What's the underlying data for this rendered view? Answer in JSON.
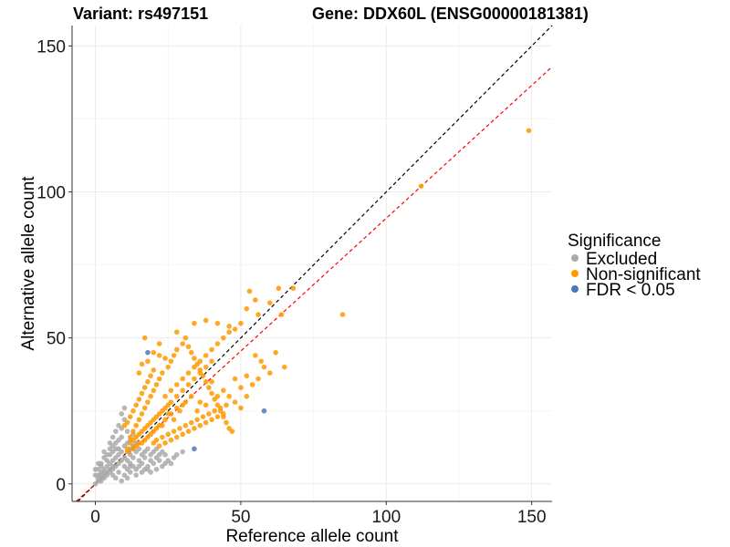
{
  "chart_data": {
    "type": "scatter",
    "title_left": "Variant: rs497151",
    "title_right": "Gene: DDX60L (ENSG00000181381)",
    "xlabel": "Reference allele count",
    "ylabel": "Alternative allele count",
    "xlim": [
      -8,
      157
    ],
    "ylim": [
      -6,
      157
    ],
    "xticks": [
      0,
      50,
      100,
      150
    ],
    "yticks": [
      0,
      50,
      100,
      150
    ],
    "grid": true,
    "legend": {
      "title": "Significance",
      "placement": "right",
      "entries": [
        {
          "label": "Excluded",
          "color": "#aaaaaa"
        },
        {
          "label": "Non-significant",
          "color": "#ff9900"
        },
        {
          "label": "FDR < 0.05",
          "color": "#4a7ab5"
        }
      ]
    },
    "reference_lines": [
      {
        "name": "y = x",
        "slope": 1.0,
        "intercept": 0,
        "color": "#000000",
        "dash": true
      },
      {
        "name": "ratio line",
        "slope": 0.91,
        "intercept": 0,
        "color": "#ff0000",
        "dash": true
      }
    ],
    "series": [
      {
        "name": "Excluded",
        "color": "#aaaaaa",
        "points": [
          [
            0,
            0
          ],
          [
            1,
            1
          ],
          [
            2,
            1
          ],
          [
            1,
            3
          ],
          [
            3,
            2
          ],
          [
            2,
            4
          ],
          [
            4,
            3
          ],
          [
            3,
            5
          ],
          [
            5,
            4
          ],
          [
            4,
            6
          ],
          [
            6,
            5
          ],
          [
            5,
            7
          ],
          [
            7,
            6
          ],
          [
            6,
            8
          ],
          [
            8,
            7
          ],
          [
            7,
            9
          ],
          [
            9,
            8
          ],
          [
            8,
            10
          ],
          [
            10,
            9
          ],
          [
            9,
            11
          ],
          [
            2,
            7
          ],
          [
            3,
            9
          ],
          [
            1,
            5
          ],
          [
            4,
            10
          ],
          [
            5,
            12
          ],
          [
            6,
            13
          ],
          [
            7,
            14
          ],
          [
            8,
            15
          ],
          [
            9,
            16
          ],
          [
            6,
            11
          ],
          [
            5,
            10
          ],
          [
            7,
            12
          ],
          [
            8,
            12
          ],
          [
            10,
            6
          ],
          [
            11,
            5
          ],
          [
            12,
            4
          ],
          [
            13,
            6
          ],
          [
            14,
            5
          ],
          [
            12,
            7
          ],
          [
            15,
            8
          ],
          [
            16,
            7
          ],
          [
            17,
            9
          ],
          [
            18,
            6
          ],
          [
            19,
            8
          ],
          [
            20,
            7
          ],
          [
            21,
            9
          ],
          [
            22,
            8
          ],
          [
            14,
            3
          ],
          [
            16,
            4
          ],
          [
            18,
            5
          ],
          [
            23,
            6
          ],
          [
            25,
            8
          ],
          [
            26,
            7
          ],
          [
            27,
            9
          ],
          [
            24,
            10
          ],
          [
            10,
            13
          ],
          [
            11,
            14
          ],
          [
            12,
            15
          ],
          [
            13,
            17
          ],
          [
            11,
            18
          ],
          [
            9,
            19
          ],
          [
            10,
            22
          ],
          [
            8,
            20
          ],
          [
            7,
            18
          ],
          [
            9,
            24
          ],
          [
            10,
            26
          ],
          [
            6,
            16
          ],
          [
            5,
            14
          ],
          [
            3,
            11
          ],
          [
            2,
            6
          ],
          [
            4,
            8
          ],
          [
            6,
            3
          ],
          [
            8,
            4
          ],
          [
            10,
            3
          ],
          [
            11,
            2
          ],
          [
            9,
            1
          ],
          [
            7,
            2
          ],
          [
            12,
            10
          ],
          [
            14,
            11
          ],
          [
            15,
            12
          ],
          [
            16,
            10
          ],
          [
            17,
            11
          ],
          [
            18,
            12
          ],
          [
            19,
            10
          ],
          [
            20,
            11
          ],
          [
            21,
            12
          ],
          [
            22,
            10
          ],
          [
            23,
            11
          ],
          [
            13,
            9
          ],
          [
            11,
            8
          ],
          [
            12,
            6
          ],
          [
            15,
            6
          ],
          [
            17,
            5
          ],
          [
            19,
            4
          ],
          [
            21,
            5
          ],
          [
            24,
            7
          ],
          [
            28,
            10
          ],
          [
            30,
            11
          ],
          [
            2,
            2
          ],
          [
            3,
            3
          ],
          [
            4,
            4
          ],
          [
            5,
            5
          ],
          [
            6,
            6
          ],
          [
            1,
            2
          ],
          [
            2,
            3
          ],
          [
            3,
            4
          ],
          [
            0,
            3
          ],
          [
            0,
            5
          ],
          [
            1,
            7
          ],
          [
            12,
            12
          ],
          [
            13,
            13
          ],
          [
            14,
            14
          ]
        ]
      },
      {
        "name": "Non-significant",
        "color": "#ff9900",
        "points": [
          [
            11,
            12
          ],
          [
            12,
            14
          ],
          [
            13,
            15
          ],
          [
            14,
            16
          ],
          [
            15,
            17
          ],
          [
            16,
            18
          ],
          [
            17,
            19
          ],
          [
            18,
            20
          ],
          [
            19,
            21
          ],
          [
            20,
            22
          ],
          [
            21,
            23
          ],
          [
            22,
            24
          ],
          [
            23,
            25
          ],
          [
            24,
            26
          ],
          [
            25,
            27
          ],
          [
            12,
            16
          ],
          [
            13,
            18
          ],
          [
            14,
            20
          ],
          [
            15,
            22
          ],
          [
            16,
            24
          ],
          [
            17,
            26
          ],
          [
            18,
            28
          ],
          [
            19,
            30
          ],
          [
            20,
            32
          ],
          [
            21,
            34
          ],
          [
            22,
            36
          ],
          [
            23,
            38
          ],
          [
            25,
            40
          ],
          [
            26,
            42
          ],
          [
            27,
            44
          ],
          [
            28,
            46
          ],
          [
            30,
            48
          ],
          [
            31,
            50
          ],
          [
            32,
            47
          ],
          [
            33,
            45
          ],
          [
            34,
            43
          ],
          [
            35,
            41
          ],
          [
            36,
            39
          ],
          [
            37,
            37
          ],
          [
            38,
            35
          ],
          [
            39,
            33
          ],
          [
            40,
            31
          ],
          [
            41,
            29
          ],
          [
            42,
            27
          ],
          [
            43,
            25
          ],
          [
            44,
            23
          ],
          [
            45,
            21
          ],
          [
            46,
            19
          ],
          [
            47,
            18
          ],
          [
            20,
            14
          ],
          [
            21,
            15
          ],
          [
            22,
            13
          ],
          [
            23,
            16
          ],
          [
            24,
            14
          ],
          [
            25,
            17
          ],
          [
            26,
            15
          ],
          [
            27,
            18
          ],
          [
            28,
            16
          ],
          [
            29,
            19
          ],
          [
            30,
            17
          ],
          [
            31,
            20
          ],
          [
            32,
            18
          ],
          [
            33,
            21
          ],
          [
            34,
            19
          ],
          [
            35,
            22
          ],
          [
            36,
            20
          ],
          [
            37,
            23
          ],
          [
            38,
            21
          ],
          [
            39,
            24
          ],
          [
            40,
            22
          ],
          [
            41,
            25
          ],
          [
            42,
            23
          ],
          [
            43,
            26
          ],
          [
            44,
            24
          ],
          [
            45,
            27
          ],
          [
            18,
            35
          ],
          [
            19,
            37
          ],
          [
            20,
            39
          ],
          [
            17,
            33
          ],
          [
            16,
            31
          ],
          [
            15,
            29
          ],
          [
            14,
            27
          ],
          [
            13,
            25
          ],
          [
            12,
            23
          ],
          [
            11,
            21
          ],
          [
            10,
            20
          ],
          [
            24,
            30
          ],
          [
            26,
            32
          ],
          [
            28,
            34
          ],
          [
            30,
            36
          ],
          [
            32,
            38
          ],
          [
            34,
            40
          ],
          [
            36,
            42
          ],
          [
            38,
            44
          ],
          [
            40,
            46
          ],
          [
            42,
            48
          ],
          [
            44,
            50
          ],
          [
            46,
            52
          ],
          [
            48,
            53
          ],
          [
            50,
            55
          ],
          [
            26,
            28
          ],
          [
            28,
            30
          ],
          [
            30,
            32
          ],
          [
            32,
            34
          ],
          [
            34,
            36
          ],
          [
            36,
            38
          ],
          [
            38,
            40
          ],
          [
            40,
            42
          ],
          [
            20,
            45
          ],
          [
            22,
            44
          ],
          [
            24,
            43
          ],
          [
            18,
            42
          ],
          [
            16,
            41
          ],
          [
            15,
            38
          ],
          [
            17,
            50
          ],
          [
            22,
            48
          ],
          [
            28,
            52
          ],
          [
            34,
            55
          ],
          [
            38,
            56
          ],
          [
            42,
            55
          ],
          [
            46,
            54
          ],
          [
            52,
            60
          ],
          [
            55,
            63
          ],
          [
            60,
            62
          ],
          [
            53,
            66
          ],
          [
            56,
            58
          ],
          [
            63,
            67
          ],
          [
            68,
            67
          ],
          [
            64,
            58
          ],
          [
            62,
            45
          ],
          [
            55,
            44
          ],
          [
            57,
            42
          ],
          [
            60,
            38
          ],
          [
            65,
            40
          ],
          [
            52,
            37
          ],
          [
            48,
            36
          ],
          [
            50,
            33
          ],
          [
            46,
            30
          ],
          [
            44,
            32
          ],
          [
            48,
            28
          ],
          [
            50,
            26
          ],
          [
            52,
            30
          ],
          [
            54,
            34
          ],
          [
            56,
            36
          ],
          [
            58,
            40
          ],
          [
            40,
            35
          ],
          [
            42,
            30
          ],
          [
            36,
            28
          ],
          [
            35,
            25
          ],
          [
            38,
            27
          ],
          [
            33,
            30
          ],
          [
            31,
            28
          ],
          [
            29,
            25
          ],
          [
            27,
            22
          ],
          [
            25,
            24
          ],
          [
            23,
            20
          ],
          [
            21,
            19
          ],
          [
            19,
            17
          ],
          [
            17,
            15
          ],
          [
            15,
            14
          ],
          [
            13,
            12
          ],
          [
            11,
            11
          ],
          [
            14,
            13
          ],
          [
            16,
            14
          ],
          [
            18,
            16
          ],
          [
            20,
            18
          ],
          [
            22,
            20
          ],
          [
            24,
            22
          ],
          [
            26,
            24
          ],
          [
            28,
            26
          ],
          [
            30,
            27
          ],
          [
            85,
            58
          ],
          [
            112,
            102
          ],
          [
            149,
            121
          ]
        ]
      },
      {
        "name": "FDR < 0.05",
        "color": "#4a7ab5",
        "points": [
          [
            18,
            45
          ],
          [
            58,
            25
          ],
          [
            34,
            12
          ]
        ]
      }
    ]
  }
}
